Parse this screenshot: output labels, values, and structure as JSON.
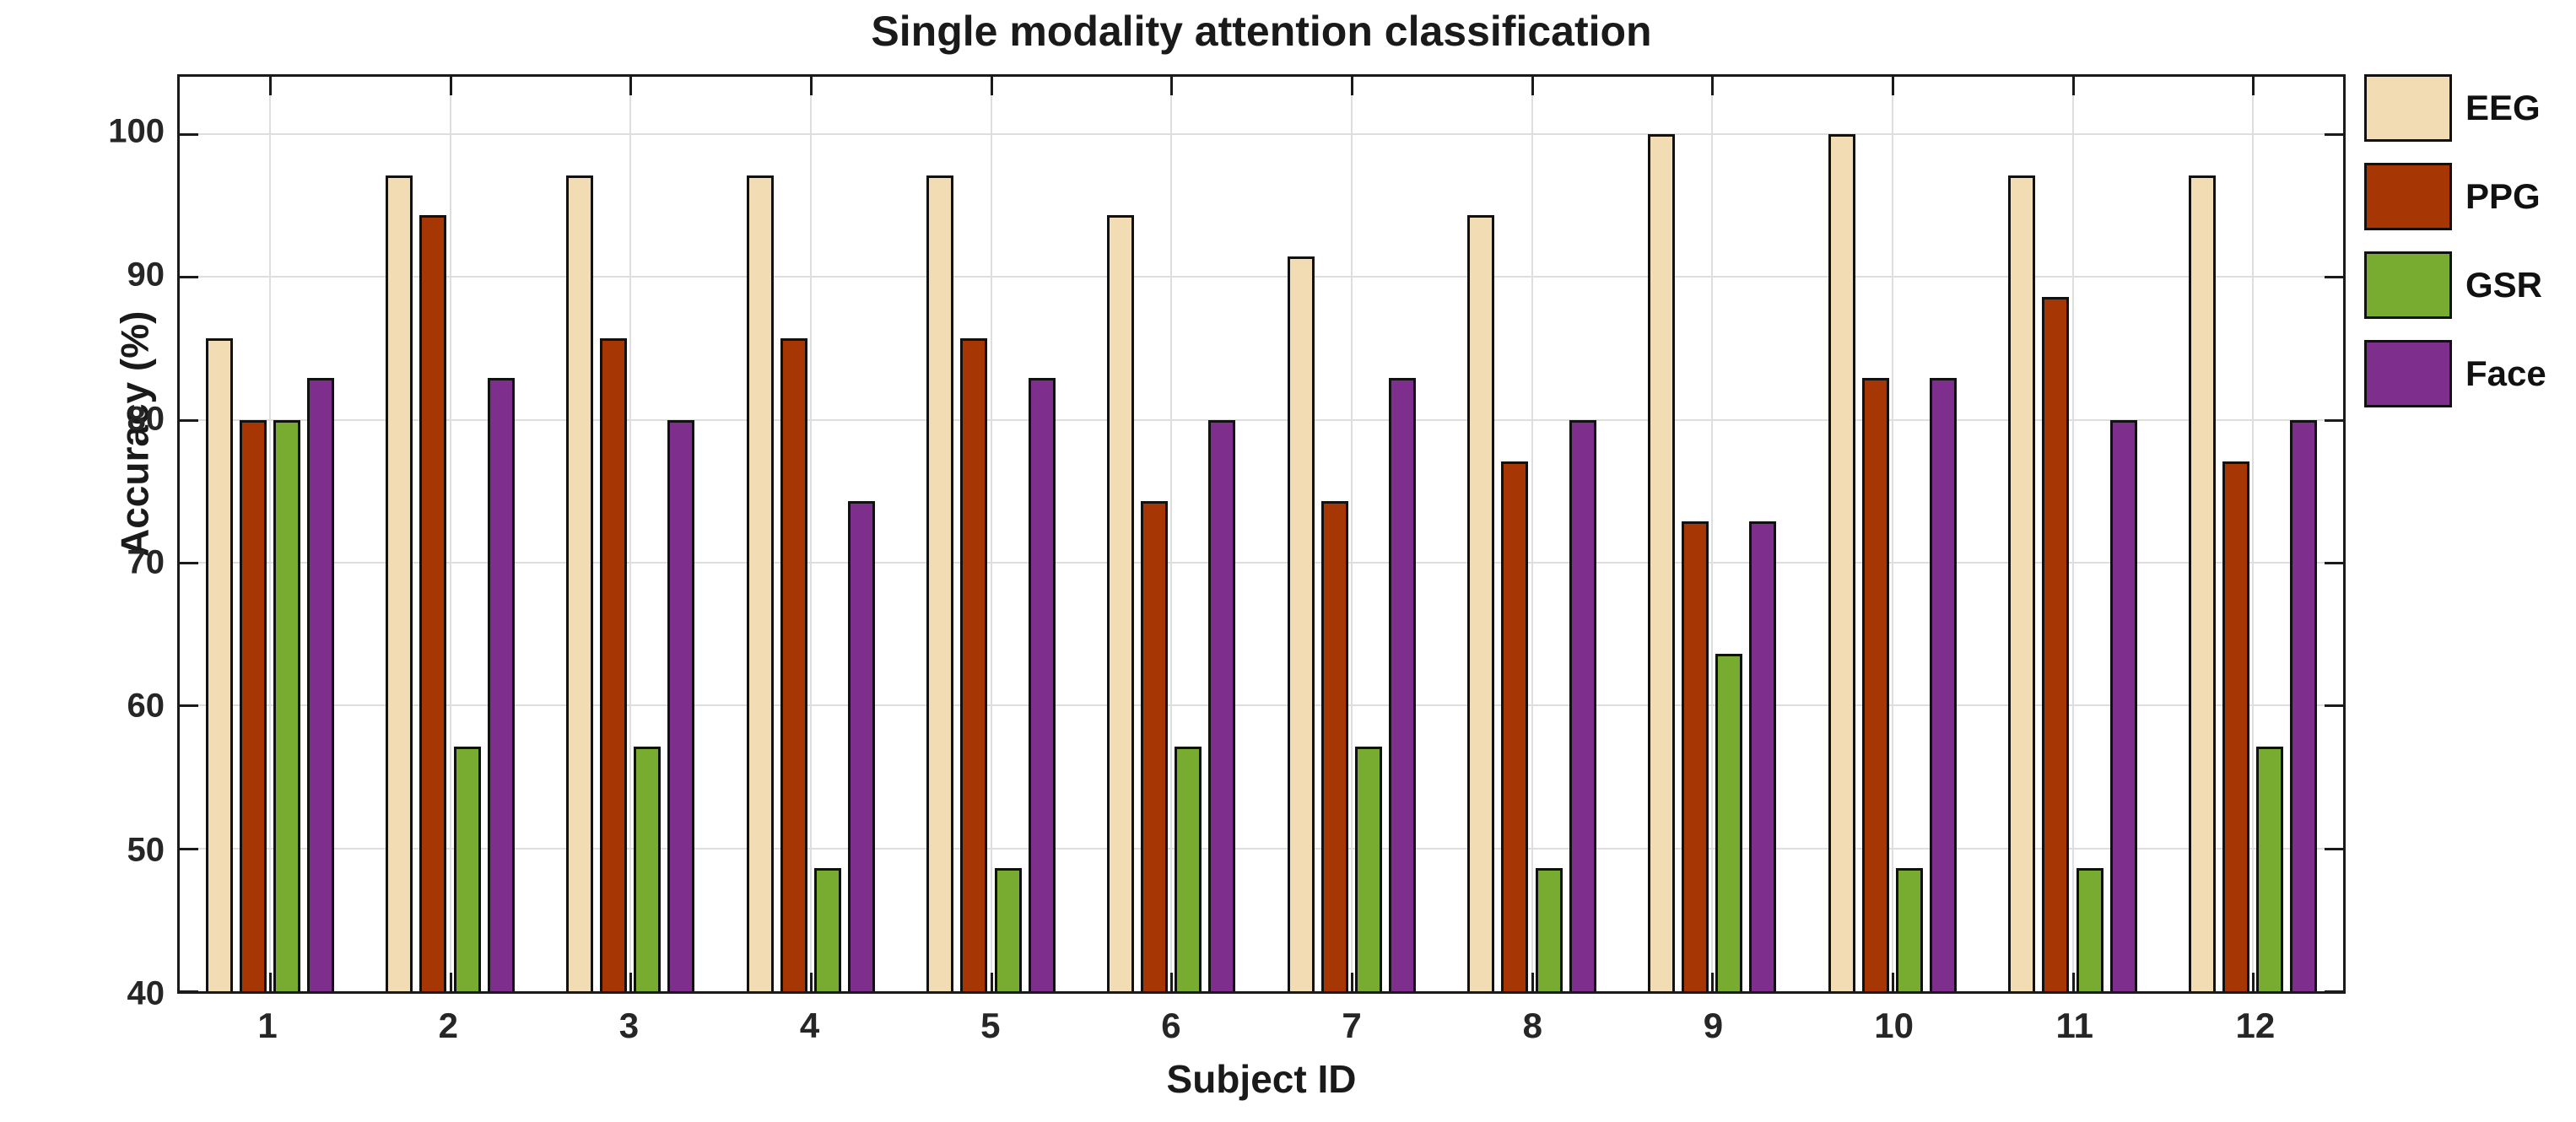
{
  "chart_data": {
    "type": "bar",
    "title": "Single modality attention classification",
    "xlabel": "Subject ID",
    "ylabel": "Accuracy (%)",
    "categories": [
      "1",
      "2",
      "3",
      "4",
      "5",
      "6",
      "7",
      "8",
      "9",
      "10",
      "11",
      "12"
    ],
    "series": [
      {
        "name": "EEG",
        "color": "#F2DCB4",
        "values": [
          85.7,
          97.1,
          97.1,
          97.1,
          97.1,
          94.3,
          91.4,
          94.3,
          100.0,
          100.0,
          97.1,
          97.1
        ]
      },
      {
        "name": "PPG",
        "color": "#A63603",
        "values": [
          80.0,
          94.3,
          85.7,
          85.7,
          85.7,
          74.3,
          74.3,
          77.1,
          72.9,
          82.9,
          88.6,
          77.1
        ]
      },
      {
        "name": "GSR",
        "color": "#77AC30",
        "values": [
          80.0,
          57.1,
          57.1,
          48.6,
          48.6,
          57.1,
          57.1,
          48.6,
          63.6,
          48.6,
          48.6,
          57.1
        ]
      },
      {
        "name": "Face",
        "color": "#7E2F8E",
        "values": [
          82.9,
          82.9,
          80.0,
          74.3,
          82.9,
          80.0,
          82.9,
          80.0,
          72.9,
          82.9,
          80.0,
          80.0
        ]
      }
    ],
    "ylim": [
      40,
      104
    ],
    "yticks": [
      40,
      50,
      60,
      70,
      80,
      90,
      100
    ],
    "grid": true,
    "legend_position": "outside-right",
    "bar_edge_color": "#111111",
    "axis_color": "#1a1a1a",
    "grid_color": "#dedede"
  }
}
